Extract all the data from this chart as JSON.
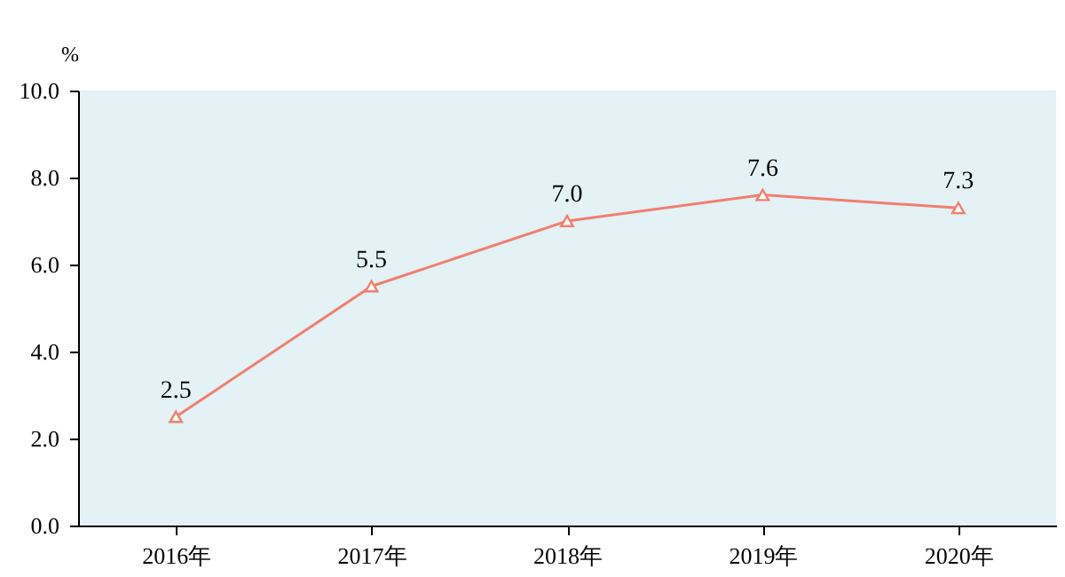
{
  "chart_data": {
    "type": "line",
    "ylabel": "%",
    "categories": [
      "2016年",
      "2017年",
      "2018年",
      "2019年",
      "2020年"
    ],
    "series": [
      {
        "color": "#f07f6e",
        "values": [
          2.5,
          5.5,
          7.0,
          7.6,
          7.3
        ],
        "value_labels": [
          "2.5",
          "5.5",
          "7.0",
          "7.6",
          "7.3"
        ]
      }
    ],
    "ylim": [
      0,
      10
    ],
    "yticks": [
      {
        "value": 0,
        "label": "0.0"
      },
      {
        "value": 2,
        "label": "2.0"
      },
      {
        "value": 4,
        "label": "4.0"
      },
      {
        "value": 6,
        "label": "6.0"
      },
      {
        "value": 8,
        "label": "8.0"
      },
      {
        "value": 10,
        "label": "10.0"
      }
    ],
    "marker": "triangle",
    "line_style": "solid",
    "grid": false
  }
}
